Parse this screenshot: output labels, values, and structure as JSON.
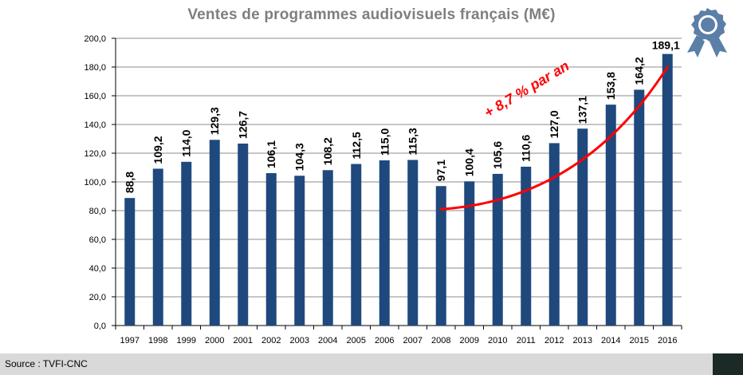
{
  "chart_data": {
    "type": "bar",
    "title": "Ventes de programmes audiovisuels français (M€)",
    "categories": [
      "1997",
      "1998",
      "1999",
      "2000",
      "2001",
      "2002",
      "2003",
      "2004",
      "2005",
      "2006",
      "2007",
      "2008",
      "2009",
      "2010",
      "2011",
      "2012",
      "2013",
      "2014",
      "2015",
      "2016"
    ],
    "values": [
      88.8,
      109.2,
      114.0,
      129.3,
      126.7,
      106.1,
      104.3,
      108.2,
      112.5,
      115.0,
      115.3,
      97.1,
      100.4,
      105.6,
      110.6,
      127.0,
      137.1,
      153.8,
      164.2,
      189.1
    ],
    "value_labels": [
      "88,8",
      "109,2",
      "114,0",
      "129,3",
      "126,7",
      "106,1",
      "104,3",
      "108,2",
      "112,5",
      "115,0",
      "115,3",
      "97,1",
      "100,4",
      "105,6",
      "110,6",
      "127,0",
      "137,1",
      "153,8",
      "164,2",
      "189,1"
    ],
    "ylim": [
      0,
      200
    ],
    "yticks": [
      "0,0",
      "20,0",
      "40,0",
      "60,0",
      "80,0",
      "100,0",
      "120,0",
      "140,0",
      "160,0",
      "180,0",
      "200,0"
    ],
    "xlabel": "",
    "ylabel": "",
    "bar_color": "#1f497d",
    "trend_color": "#ff0000",
    "trend_start": {
      "x": "2008",
      "y": 81
    },
    "trend_control": {
      "x": "2013",
      "y": 118
    },
    "trend_end": {
      "x": "2016",
      "y": 180
    },
    "annotation": "+ 8,7 % par an"
  },
  "footer": {
    "source": "Source : TVFI-CNC"
  },
  "icons": {
    "award": "award-ribbon-icon",
    "award_color": "#5b7fa6"
  }
}
